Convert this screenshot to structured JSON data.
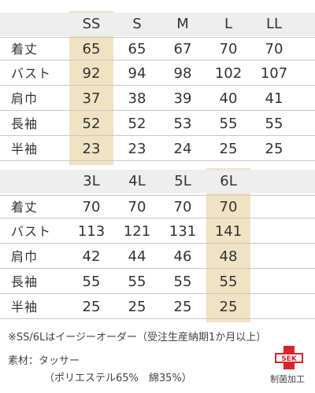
{
  "table1": {
    "sizes": [
      "SS",
      "S",
      "M",
      "L",
      "LL"
    ],
    "rows": [
      {
        "label": "着丈",
        "values": [
          "65",
          "65",
          "67",
          "70",
          "70"
        ]
      },
      {
        "label": "バスト",
        "values": [
          "92",
          "94",
          "98",
          "102",
          "107"
        ]
      },
      {
        "label": "肩巾",
        "values": [
          "37",
          "38",
          "39",
          "40",
          "41"
        ]
      },
      {
        "label": "長袖",
        "values": [
          "52",
          "52",
          "53",
          "55",
          "55"
        ]
      },
      {
        "label": "半袖",
        "values": [
          "23",
          "23",
          "24",
          "25",
          "25"
        ]
      }
    ]
  },
  "table2": {
    "sizes": [
      "3L",
      "4L",
      "5L",
      "6L"
    ],
    "rows": [
      {
        "label": "着丈",
        "values": [
          "70",
          "70",
          "70",
          "70"
        ]
      },
      {
        "label": "バスト",
        "values": [
          "113",
          "121",
          "131",
          "141"
        ]
      },
      {
        "label": "肩巾",
        "values": [
          "42",
          "44",
          "46",
          "48"
        ]
      },
      {
        "label": "長袖",
        "values": [
          "55",
          "55",
          "55",
          "55"
        ]
      },
      {
        "label": "半袖",
        "values": [
          "25",
          "25",
          "25",
          "25"
        ]
      }
    ]
  },
  "notes": {
    "order_note": "※SS/6Lはイージーオーダー（受注生産納期1か月以上）",
    "material_label": "素材：タッサー",
    "material_detail": "（ポリエステル65%　綿35%）"
  },
  "badge": {
    "logo_text": "SEK",
    "caption": "制菌加工"
  },
  "colors": {
    "highlight": "#f0e2c2",
    "header_bg": "#eeeeee",
    "badge_red": "#d8242b"
  }
}
